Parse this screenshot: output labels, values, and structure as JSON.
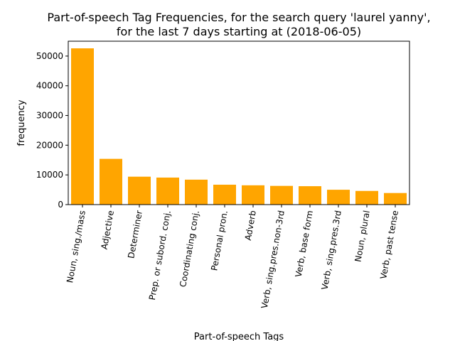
{
  "chart_data": {
    "type": "bar",
    "title": "Part-of-speech Tag Frequencies, for the search query 'laurel yanny',",
    "subtitle": "for the last 7 days starting at (2018-06-05)",
    "xlabel": "Part-of-speech Tags",
    "ylabel": "frequency",
    "ylim": [
      0,
      55000
    ],
    "yticks": [
      0,
      10000,
      20000,
      30000,
      40000,
      50000
    ],
    "categories": [
      "Noun, sing./mass",
      "Adjective",
      "Determiner",
      "Prep. or subord. conj.",
      "Coordinating conj.",
      "Personal pron.",
      "Adverb",
      "Verb, sing.pres.non-3rd",
      "Verb, base form",
      "Verb, sing.pres.3rd",
      "Noun, plural",
      "Verb, past tense"
    ],
    "values": [
      52600,
      15400,
      9400,
      9100,
      8400,
      6700,
      6500,
      6300,
      6200,
      5000,
      4600,
      3900
    ],
    "bar_color": "#FFA500",
    "grid": false
  }
}
